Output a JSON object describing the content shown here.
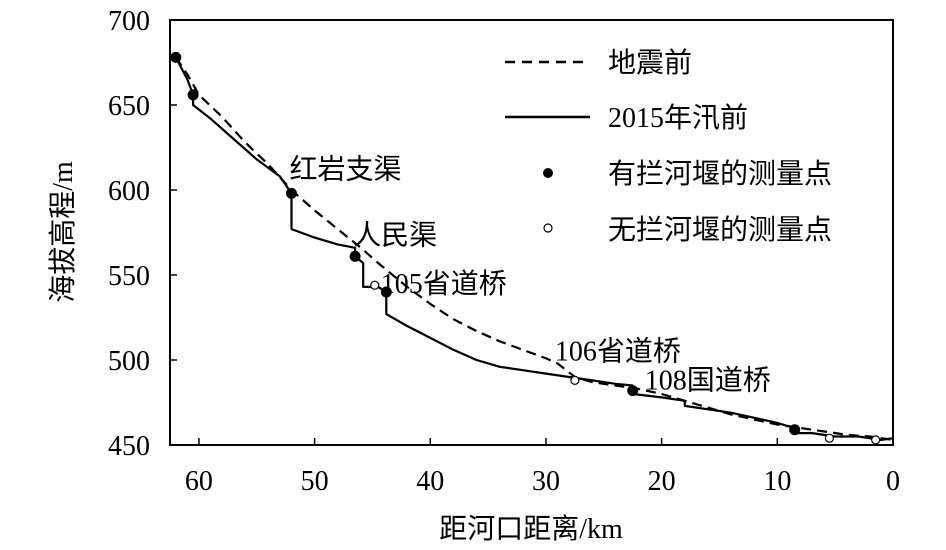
{
  "chart_data": {
    "type": "line",
    "title": "",
    "xlabel": "距河口距离/km",
    "ylabel": "海拔高程/m",
    "xlim": [
      62.5,
      0
    ],
    "ylim": [
      450,
      700
    ],
    "x_reversed": true,
    "x_ticks": [
      60,
      50,
      40,
      30,
      20,
      10,
      0
    ],
    "y_ticks": [
      700,
      650,
      600,
      550,
      500,
      450
    ],
    "grid": false,
    "legend_position": "top-right",
    "legend": [
      {
        "label": "地震前",
        "style": "dashed"
      },
      {
        "label": "2015年汛前",
        "style": "solid"
      },
      {
        "label": "有拦河堰的测量点",
        "style": "filled-dot"
      },
      {
        "label": "无拦河堰的测量点",
        "style": "open-dot"
      }
    ],
    "series": [
      {
        "name": "地震前",
        "style": "dashed",
        "points": [
          [
            62,
            678
          ],
          [
            61,
            668
          ],
          [
            60,
            656
          ],
          [
            58,
            643
          ],
          [
            56,
            628
          ],
          [
            54,
            615
          ],
          [
            52,
            600
          ],
          [
            50,
            588
          ],
          [
            48,
            577
          ],
          [
            46,
            566
          ],
          [
            44.5,
            557
          ],
          [
            42,
            543
          ],
          [
            40,
            533
          ],
          [
            38,
            524
          ],
          [
            36,
            517
          ],
          [
            34,
            511
          ],
          [
            32,
            506
          ],
          [
            30,
            501
          ],
          [
            29,
            498
          ],
          [
            27.5,
            490
          ],
          [
            26,
            487
          ],
          [
            24,
            485
          ],
          [
            22,
            483
          ],
          [
            20,
            480
          ],
          [
            18,
            476
          ],
          [
            16,
            472
          ],
          [
            14,
            468
          ],
          [
            12,
            465
          ],
          [
            10,
            462
          ],
          [
            8,
            460
          ],
          [
            6,
            458
          ],
          [
            4,
            456
          ],
          [
            2,
            455
          ],
          [
            0,
            453
          ]
        ]
      },
      {
        "name": "2015年汛前",
        "style": "solid",
        "points": [
          [
            62,
            678
          ],
          [
            61,
            665
          ],
          [
            60.5,
            656
          ],
          [
            60.5,
            650
          ],
          [
            59,
            642
          ],
          [
            57,
            630
          ],
          [
            55,
            618
          ],
          [
            53,
            608
          ],
          [
            52,
            598
          ],
          [
            52,
            577
          ],
          [
            50,
            572
          ],
          [
            48,
            568
          ],
          [
            46.5,
            566
          ],
          [
            46.5,
            561
          ],
          [
            45.8,
            557
          ],
          [
            45.8,
            543
          ],
          [
            44.5,
            543
          ],
          [
            43.8,
            540
          ],
          [
            43.8,
            527
          ],
          [
            42,
            520
          ],
          [
            40,
            513
          ],
          [
            38,
            506
          ],
          [
            36,
            500
          ],
          [
            34,
            496
          ],
          [
            32,
            494
          ],
          [
            30,
            492
          ],
          [
            28,
            490
          ],
          [
            26,
            488
          ],
          [
            24,
            486
          ],
          [
            22.5,
            485
          ],
          [
            22.5,
            480
          ],
          [
            20,
            478
          ],
          [
            18,
            476
          ],
          [
            18,
            473
          ],
          [
            16,
            471
          ],
          [
            14,
            469
          ],
          [
            12,
            466
          ],
          [
            10,
            463
          ],
          [
            8.5,
            460
          ],
          [
            8.5,
            457
          ],
          [
            7,
            457
          ],
          [
            5,
            455
          ],
          [
            3,
            455
          ],
          [
            1,
            453
          ],
          [
            0,
            454
          ]
        ]
      }
    ],
    "points_with_weir": [
      [
        62,
        678
      ],
      [
        60.5,
        656
      ],
      [
        52,
        598
      ],
      [
        46.5,
        561
      ],
      [
        43.8,
        540
      ],
      [
        22.5,
        482
      ],
      [
        8.5,
        459
      ]
    ],
    "points_without_weir": [
      [
        44.8,
        544
      ],
      [
        27.5,
        488
      ],
      [
        5.5,
        454
      ],
      [
        1.5,
        453
      ]
    ],
    "annotations": [
      {
        "text": "红岩支渠",
        "x": 52,
        "y": 598
      },
      {
        "text": "人民渠",
        "x": 46.5,
        "y": 561
      },
      {
        "text": "105省道桥",
        "x": 44.8,
        "y": 544
      },
      {
        "text": "106省道桥",
        "x": 27.5,
        "y": 488
      },
      {
        "text": "108国道桥",
        "x": 22.5,
        "y": 482
      }
    ]
  }
}
